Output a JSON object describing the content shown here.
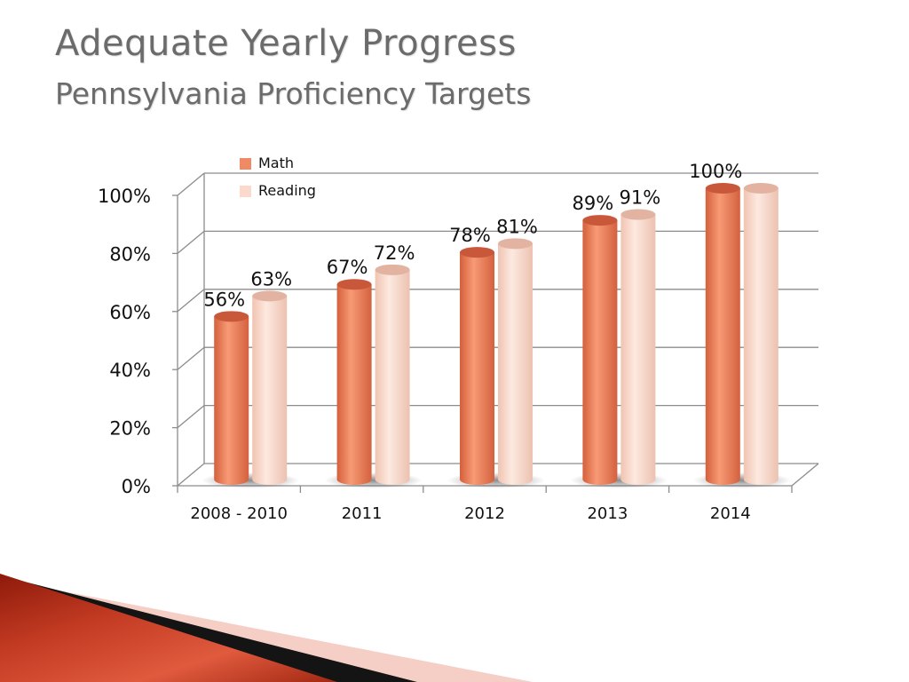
{
  "slide": {
    "title": "Adequate Yearly Progress",
    "subtitle": "Pennsylvania Proficiency Targets"
  },
  "colors": {
    "math": "#f08a64",
    "reading": "#fbd9cc",
    "title": "#6b6b6b",
    "accent_dark": "#8e1a0a",
    "accent_red": "#d9442a",
    "accent_pink": "#f5cfc6"
  },
  "chart_data": {
    "type": "bar",
    "title": "",
    "xlabel": "",
    "ylabel": "",
    "categories": [
      "2008 - 2010",
      "2011",
      "2012",
      "2013",
      "2014"
    ],
    "series": [
      {
        "name": "Math",
        "values": [
          56,
          67,
          78,
          89,
          100
        ],
        "labels": [
          "56%",
          "67%",
          "78%",
          "89%",
          "100%"
        ]
      },
      {
        "name": "Reading",
        "values": [
          63,
          72,
          81,
          91,
          100
        ],
        "labels": [
          "63%",
          "72%",
          "81%",
          "91%",
          ""
        ]
      }
    ],
    "ylim": [
      0,
      100
    ],
    "yticks": [
      0,
      20,
      40,
      60,
      80,
      100
    ],
    "ytick_labels": [
      "0%",
      "20%",
      "40%",
      "60%",
      "80%",
      "100%"
    ],
    "grid": true,
    "legend": "top-left",
    "style": "3d-cylinder"
  }
}
